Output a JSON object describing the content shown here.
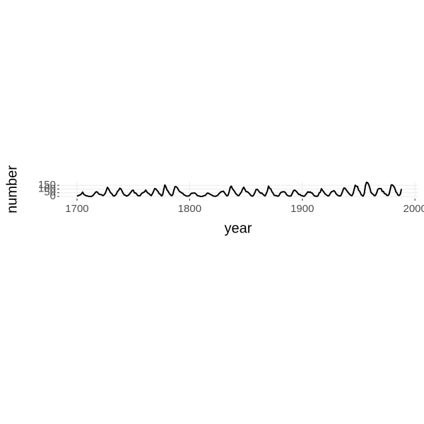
{
  "chart_data": {
    "type": "line",
    "x_label": "year",
    "y_label": "number",
    "x": [
      1700,
      1701,
      1702,
      1703,
      1704,
      1705,
      1706,
      1707,
      1708,
      1709,
      1710,
      1711,
      1712,
      1713,
      1714,
      1715,
      1716,
      1717,
      1718,
      1719,
      1720,
      1721,
      1722,
      1723,
      1724,
      1725,
      1726,
      1727,
      1728,
      1729,
      1730,
      1731,
      1732,
      1733,
      1734,
      1735,
      1736,
      1737,
      1738,
      1739,
      1740,
      1741,
      1742,
      1743,
      1744,
      1745,
      1746,
      1747,
      1748,
      1749,
      1750,
      1751,
      1752,
      1753,
      1754,
      1755,
      1756,
      1757,
      1758,
      1759,
      1760,
      1761,
      1762,
      1763,
      1764,
      1765,
      1766,
      1767,
      1768,
      1769,
      1770,
      1771,
      1772,
      1773,
      1774,
      1775,
      1776,
      1777,
      1778,
      1779,
      1780,
      1781,
      1782,
      1783,
      1784,
      1785,
      1786,
      1787,
      1788,
      1789,
      1790,
      1791,
      1792,
      1793,
      1794,
      1795,
      1796,
      1797,
      1798,
      1799,
      1800,
      1801,
      1802,
      1803,
      1804,
      1805,
      1806,
      1807,
      1808,
      1809,
      1810,
      1811,
      1812,
      1813,
      1814,
      1815,
      1816,
      1817,
      1818,
      1819,
      1820,
      1821,
      1822,
      1823,
      1824,
      1825,
      1826,
      1827,
      1828,
      1829,
      1830,
      1831,
      1832,
      1833,
      1834,
      1835,
      1836,
      1837,
      1838,
      1839,
      1840,
      1841,
      1842,
      1843,
      1844,
      1845,
      1846,
      1847,
      1848,
      1849,
      1850,
      1851,
      1852,
      1853,
      1854,
      1855,
      1856,
      1857,
      1858,
      1859,
      1860,
      1861,
      1862,
      1863,
      1864,
      1865,
      1866,
      1867,
      1868,
      1869,
      1870,
      1871,
      1872,
      1873,
      1874,
      1875,
      1876,
      1877,
      1878,
      1879,
      1880,
      1881,
      1882,
      1883,
      1884,
      1885,
      1886,
      1887,
      1888,
      1889,
      1890,
      1891,
      1892,
      1893,
      1894,
      1895,
      1896,
      1897,
      1898,
      1899,
      1900,
      1901,
      1902,
      1903,
      1904,
      1905,
      1906,
      1907,
      1908,
      1909,
      1910,
      1911,
      1912,
      1913,
      1914,
      1915,
      1916,
      1917,
      1918,
      1919,
      1920,
      1921,
      1922,
      1923,
      1924,
      1925,
      1926,
      1927,
      1928,
      1929,
      1930,
      1931,
      1932,
      1933,
      1934,
      1935,
      1936,
      1937,
      1938,
      1939,
      1940,
      1941,
      1942,
      1943,
      1944,
      1945,
      1946,
      1947,
      1948,
      1949,
      1950,
      1951,
      1952,
      1953,
      1954,
      1955,
      1956,
      1957,
      1958,
      1959,
      1960,
      1961,
      1962,
      1963,
      1964,
      1965,
      1966,
      1967,
      1968,
      1969,
      1970,
      1971,
      1972,
      1973,
      1974,
      1975,
      1976,
      1977,
      1978,
      1979,
      1980,
      1981,
      1982,
      1983,
      1984,
      1985,
      1986,
      1987,
      1988
    ],
    "series": [
      {
        "color": "#000000",
        "values": [
          5,
          11,
          16,
          23,
          36,
          58,
          29,
          20,
          10,
          8,
          3,
          0,
          0,
          2,
          11,
          27,
          47,
          63,
          60,
          39,
          28,
          26,
          22,
          11,
          21,
          40,
          78,
          122,
          103,
          73,
          47,
          35,
          11,
          5,
          16,
          34,
          70,
          81,
          111,
          101,
          73,
          40,
          20,
          16,
          5,
          11,
          22,
          40,
          60,
          80.9,
          83.4,
          47.7,
          47.8,
          30.7,
          12.2,
          9.6,
          10.2,
          32.4,
          47.6,
          54,
          62.9,
          85.9,
          61.2,
          45.1,
          36.4,
          20.9,
          11.4,
          37.8,
          69.8,
          106.1,
          100.8,
          81.6,
          66.5,
          34.8,
          30.6,
          7,
          19.8,
          92.5,
          154.4,
          125.9,
          84.8,
          68.1,
          38.5,
          22.8,
          10.2,
          24.1,
          82.9,
          132,
          130.9,
          118.1,
          89.9,
          66.6,
          60,
          46.9,
          41,
          21.3,
          16,
          6.4,
          4.1,
          6.8,
          14.5,
          34,
          45,
          43.1,
          47.5,
          42.2,
          28.1,
          10.1,
          8.1,
          2.5,
          0,
          1.4,
          5,
          12.2,
          13.9,
          35.4,
          45.8,
          41.1,
          30.1,
          23.9,
          15.6,
          6.6,
          4,
          1.8,
          8.5,
          16.6,
          36.3,
          49.6,
          64.2,
          67,
          70.9,
          47.8,
          27.5,
          8.5,
          13.2,
          56.9,
          121.5,
          138.3,
          103.2,
          85.7,
          64.6,
          36.7,
          24.2,
          10.7,
          15,
          40.1,
          61.5,
          98.5,
          124.7,
          96.3,
          66.6,
          64.5,
          54.1,
          39,
          20.6,
          6.7,
          4.3,
          22.7,
          54.8,
          93.8,
          95.8,
          77.2,
          59.1,
          44,
          47,
          30.5,
          16.3,
          7.3,
          37.6,
          74,
          139,
          111.2,
          101.6,
          66.2,
          44.7,
          17,
          11.3,
          12.4,
          3.4,
          6,
          32.3,
          54.3,
          59.7,
          63.7,
          63.5,
          52.2,
          25.4,
          13.1,
          6.8,
          6.3,
          7.1,
          35.6,
          73,
          85.1,
          78,
          64,
          41.8,
          26.2,
          26.7,
          12.1,
          9.5,
          2.7,
          5,
          24.4,
          42,
          63.5,
          53.8,
          62,
          48.5,
          43.9,
          18.6,
          5.7,
          3.6,
          1.4,
          9.6,
          47.4,
          57.1,
          103.9,
          80.6,
          63.6,
          37.6,
          26.1,
          14.2,
          5.8,
          16.7,
          44.3,
          63.9,
          69,
          77.8,
          64.9,
          35.7,
          21.2,
          11.1,
          5.7,
          8.7,
          36.1,
          79.7,
          114.4,
          109.6,
          88.8,
          67.8,
          47.5,
          30.6,
          16.3,
          9.6,
          33.2,
          92.6,
          151.6,
          136.3,
          134.7,
          83.9,
          69.4,
          31.5,
          13.9,
          4.4,
          38,
          141.7,
          190.2,
          184.8,
          159,
          112.3,
          53.9,
          37.5,
          27.9,
          10.2,
          15.1,
          47,
          93.8,
          105.9,
          105.5,
          104.5,
          66.6,
          68.9,
          38,
          34.5,
          15.5,
          12.6,
          27.5,
          92.5,
          155.4,
          154.7,
          140.5,
          115.9,
          66.6,
          45.9,
          17.9,
          13.4,
          29.2,
          100.2
        ]
      }
    ],
    "xlim": [
      1685.6,
      2002.4
    ],
    "xticks": [
      1700,
      1800,
      1900,
      2000
    ],
    "ylim": [
      -9.5,
      199.7
    ],
    "yticks": [
      0,
      50,
      100,
      150
    ],
    "grid": true
  }
}
